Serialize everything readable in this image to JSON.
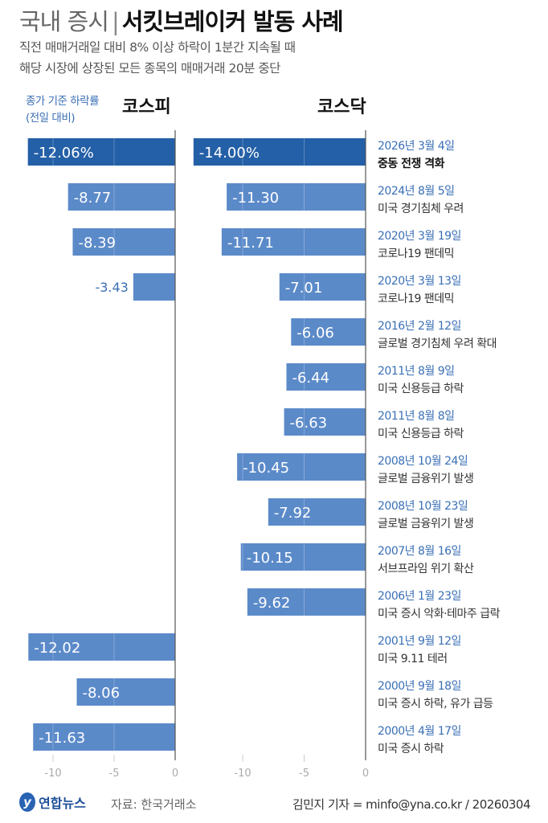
{
  "header": {
    "title_light": "국내 증시",
    "title_bold": "서킷브레이커 발동 사례",
    "subtitle": [
      "직전 매매거래일 대비 8% 이상 하락이 1분간 지속될 때",
      "해당 시장에 상장된 모든 종목의 매매거래 20분 중단"
    ]
  },
  "footer": {
    "logo": "연합뉴스",
    "source": "자료: 한국거래소",
    "credit": "김민지 기자 = minfo@yna.co.kr / 20260304"
  },
  "colors": {
    "highlight": "#2460a7",
    "bar": "#5b8ac9",
    "label_blue": "#3a6fb5"
  },
  "chart_data": {
    "type": "bar",
    "orientation": "horizontal",
    "unit_label": [
      "종가 기준 하락률",
      "(전일 대비)"
    ],
    "panels": [
      {
        "title": "코스피",
        "xlim": [
          -12.5,
          0
        ],
        "ticks": [
          "-10",
          "-5",
          "0"
        ],
        "tick_values": [
          -10,
          -5,
          0
        ],
        "values": [
          -12.06,
          -8.77,
          -8.39,
          -3.43,
          null,
          null,
          null,
          null,
          null,
          null,
          null,
          -12.02,
          -8.06,
          -11.63
        ],
        "labels": [
          "-12.06%",
          "-8.77",
          "-8.39",
          "-3.43",
          null,
          null,
          null,
          null,
          null,
          null,
          null,
          "-12.02",
          "-8.06",
          "-11.63"
        ]
      },
      {
        "title": "코스닥",
        "xlim": [
          -14.5,
          0
        ],
        "ticks": [
          "-10",
          "-5",
          "0"
        ],
        "tick_values": [
          -10,
          -5,
          0
        ],
        "values": [
          -14.0,
          -11.3,
          -11.71,
          -7.01,
          -6.06,
          -6.44,
          -6.63,
          -10.45,
          -7.92,
          -10.15,
          -9.62,
          null,
          null,
          null
        ],
        "labels": [
          "-14.00%",
          "-11.30",
          "-11.71",
          "-7.01",
          "-6.06",
          "-6.44",
          "-6.63",
          "-10.45",
          "-7.92",
          "-10.15",
          "-9.62",
          null,
          null,
          null
        ]
      }
    ],
    "categories": [
      {
        "date": "2026년 3월 4일",
        "event": "중동 전쟁 격화"
      },
      {
        "date": "2024년 8월 5일",
        "event": "미국 경기침체 우려"
      },
      {
        "date": "2020년 3월 19일",
        "event": "코로나19 팬데믹"
      },
      {
        "date": "2020년 3월 13일",
        "event": "코로나19 팬데믹"
      },
      {
        "date": "2016년 2월 12일",
        "event": "글로벌 경기침체 우려 확대"
      },
      {
        "date": "2011년 8월 9일",
        "event": "미국 신용등급 하락"
      },
      {
        "date": "2011년 8월 8일",
        "event": "미국 신용등급 하락"
      },
      {
        "date": "2008년 10월 24일",
        "event": "글로벌 금융위기 발생"
      },
      {
        "date": "2008년 10월 23일",
        "event": "글로벌 금융위기 발생"
      },
      {
        "date": "2007년 8월 16일",
        "event": "서브프라임 위기 확산"
      },
      {
        "date": "2006년 1월 23일",
        "event": "미국 증시 악화·테마주 급락"
      },
      {
        "date": "2001년 9월 12일",
        "event": "미국 9.11 테러"
      },
      {
        "date": "2000년 9월 18일",
        "event": "미국 증시 하락, 유가 급등"
      },
      {
        "date": "2000년 4월 17일",
        "event": "미국 증시 하락"
      }
    ]
  }
}
